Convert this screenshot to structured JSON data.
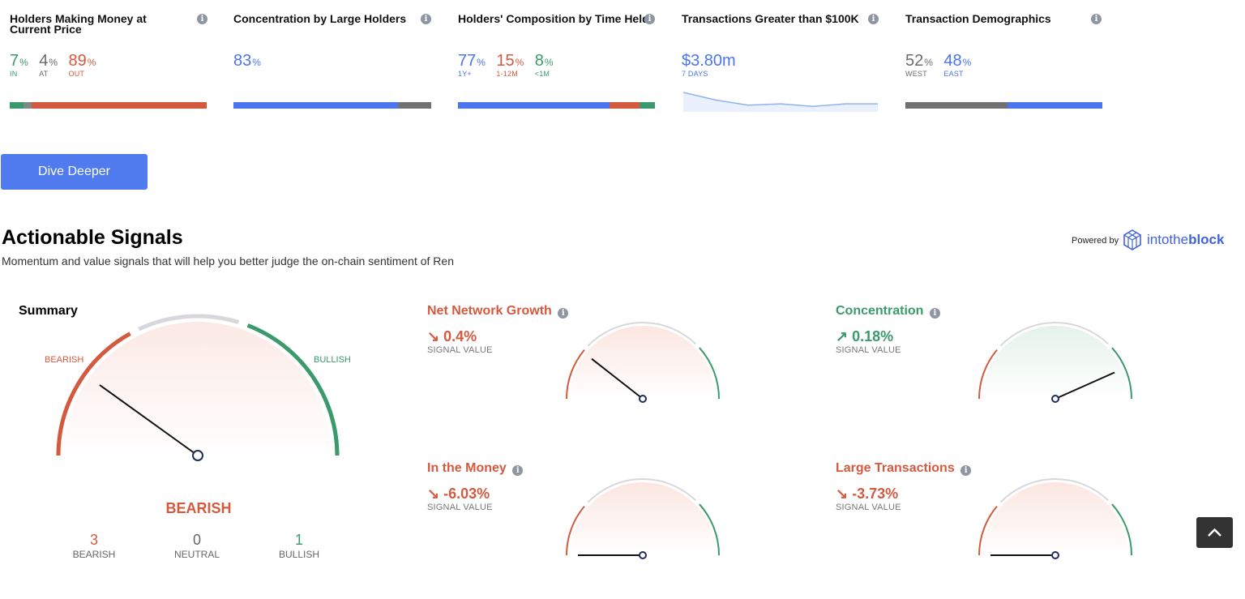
{
  "cards": {
    "holders_money": {
      "title": "Holders Making Money at Current Price",
      "stats": [
        {
          "value": "7",
          "unit": "%",
          "label": "IN"
        },
        {
          "value": "4",
          "unit": "%",
          "label": "AT"
        },
        {
          "value": "89",
          "unit": "%",
          "label": "OUT"
        }
      ],
      "bar_fractions": [
        0.07,
        0.04,
        0.89
      ]
    },
    "concentration": {
      "title": "Concentration by Large Holders",
      "stats": [
        {
          "value": "83",
          "unit": "%"
        }
      ],
      "bar_fractions": [
        0.83,
        0.17
      ]
    },
    "composition": {
      "title": "Holders' Composition by Time Held",
      "stats": [
        {
          "value": "77",
          "unit": "%",
          "label": "1Y+"
        },
        {
          "value": "15",
          "unit": "%",
          "label": "1-12M"
        },
        {
          "value": "8",
          "unit": "%",
          "label": "<1M"
        }
      ],
      "bar_fractions": [
        0.77,
        0.15,
        0.08
      ]
    },
    "transactions": {
      "title": "Transactions Greater than $100K",
      "value": "$3.80m",
      "label": "7 DAYS",
      "sparkline": [
        14,
        8,
        4,
        5,
        3,
        5,
        5
      ]
    },
    "demographics": {
      "title": "Transaction Demographics",
      "stats": [
        {
          "value": "52",
          "unit": "%",
          "label": "WEST"
        },
        {
          "value": "48",
          "unit": "%",
          "label": "EAST"
        }
      ],
      "bar_fractions": [
        0.52,
        0.48
      ]
    }
  },
  "dive_button": "Dive Deeper",
  "signals": {
    "heading": "Actionable Signals",
    "subtitle": "Momentum and value signals that will help you better judge the on-chain sentiment of Ren",
    "powered_by": "Powered by",
    "brand_into": "into",
    "brand_the": "the",
    "brand_block": "block",
    "summary": {
      "title": "Summary",
      "bearish_label": "BEARISH",
      "bullish_label": "BULLISH",
      "result": "BEARISH",
      "counts": [
        {
          "value": "3",
          "label": "BEARISH"
        },
        {
          "value": "0",
          "label": "NEUTRAL"
        },
        {
          "value": "1",
          "label": "BULLISH"
        }
      ]
    },
    "items": [
      {
        "title": "Net Network Growth",
        "value": "0.4%",
        "value_label": "SIGNAL VALUE",
        "status": "bearish",
        "arrow": "down"
      },
      {
        "title": "Concentration",
        "value": "0.18%",
        "value_label": "SIGNAL VALUE",
        "status": "bullish",
        "arrow": "up"
      },
      {
        "title": "In the Money",
        "value": "-6.03%",
        "value_label": "SIGNAL VALUE",
        "status": "bearish",
        "arrow": "down"
      },
      {
        "title": "Large Transactions",
        "value": "-3.73%",
        "value_label": "SIGNAL VALUE",
        "status": "bearish",
        "arrow": "down"
      }
    ]
  },
  "colors": {
    "green": "#3b9a6b",
    "red": "#d45a3f",
    "grey": "#6b6b6b",
    "blue": "#4b74ed",
    "accent": "#4f7bef"
  },
  "icons": {
    "info": "info-icon",
    "arrow_up": "arrow-up-right-icon",
    "arrow_down": "arrow-down-right-icon",
    "scroll_top": "chevron-up-icon",
    "logo": "intotheblock-cube-icon"
  }
}
